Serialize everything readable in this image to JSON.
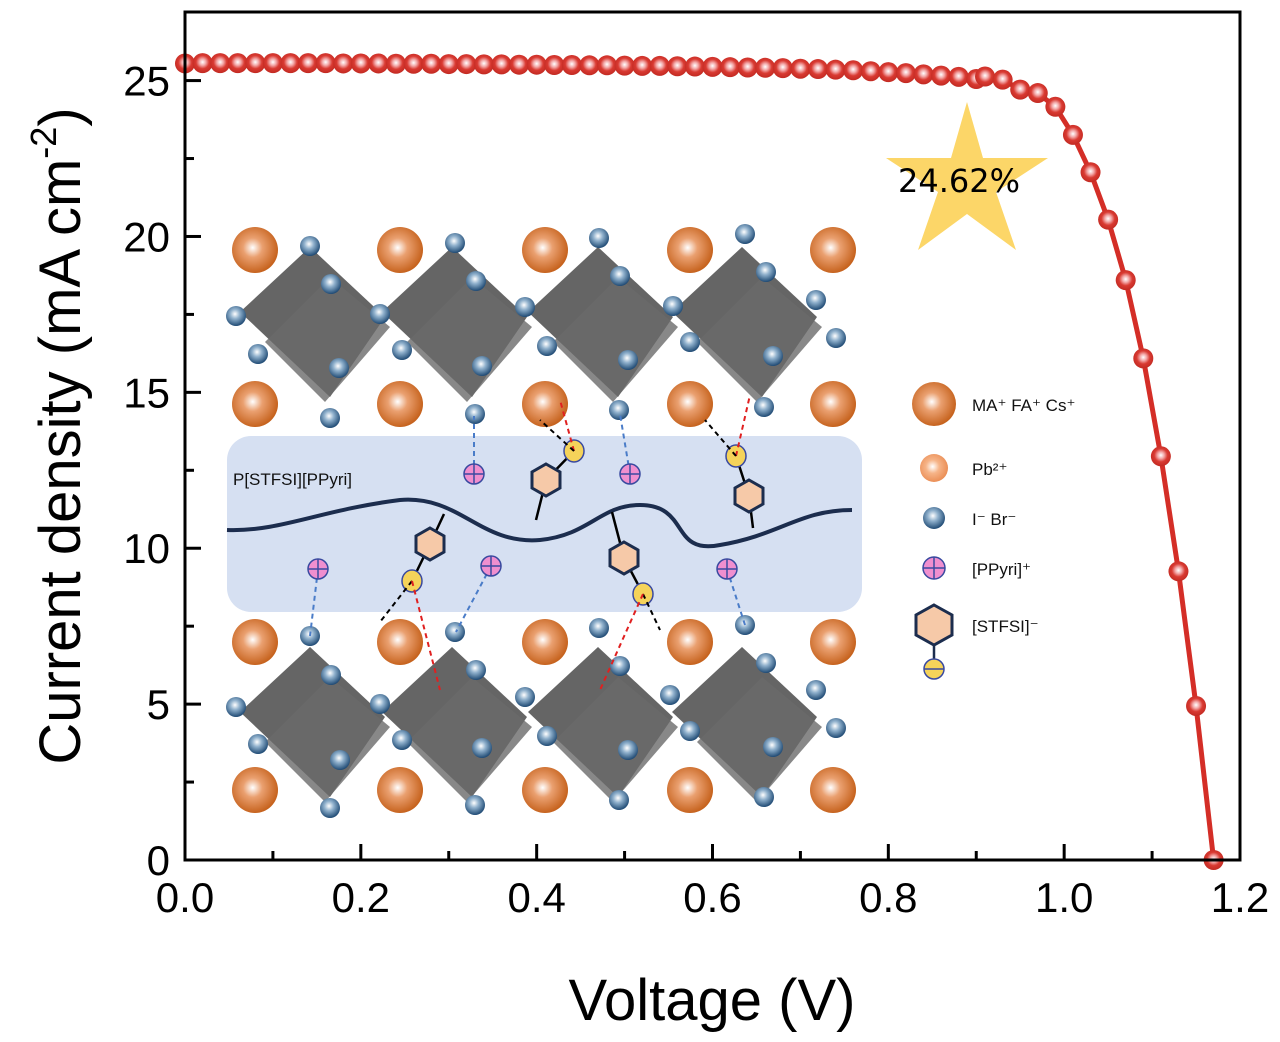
{
  "chart_data": {
    "type": "line",
    "title": "",
    "xlabel": "Voltage (V)",
    "ylabel_main": "Current density (mA cm",
    "ylabel_sup": "-2",
    "ylabel_close": ")",
    "xlim": [
      0.0,
      1.2
    ],
    "ylim": [
      0,
      27.2
    ],
    "xticks": [
      0.0,
      0.2,
      0.4,
      0.6,
      0.8,
      1.0,
      1.2
    ],
    "xtick_labels": [
      "0.0",
      "0.2",
      "0.4",
      "0.6",
      "0.8",
      "1.0",
      "1.2"
    ],
    "xminor_step": 0.1,
    "yticks": [
      0,
      5,
      10,
      15,
      20,
      25
    ],
    "ytick_labels": [
      "0",
      "5",
      "10",
      "15",
      "20",
      "25"
    ],
    "yminor_step": 2.5,
    "grid": false,
    "series": [
      {
        "name": "J-V curve",
        "color": "#d42e27",
        "x": [
          0.0,
          0.02,
          0.04,
          0.06,
          0.08,
          0.1,
          0.12,
          0.14,
          0.16,
          0.18,
          0.2,
          0.22,
          0.24,
          0.26,
          0.28,
          0.3,
          0.32,
          0.34,
          0.36,
          0.38,
          0.4,
          0.42,
          0.44,
          0.46,
          0.48,
          0.5,
          0.52,
          0.54,
          0.56,
          0.58,
          0.6,
          0.62,
          0.64,
          0.66,
          0.68,
          0.7,
          0.72,
          0.74,
          0.76,
          0.78,
          0.8,
          0.82,
          0.84,
          0.86,
          0.88,
          0.9,
          0.91,
          0.93,
          0.95,
          0.97,
          0.99,
          1.01,
          1.03,
          1.05,
          1.07,
          1.09,
          1.11,
          1.13,
          1.15,
          1.17
        ],
        "y": [
          25.55,
          25.56,
          25.56,
          25.56,
          25.56,
          25.56,
          25.56,
          25.56,
          25.56,
          25.55,
          25.55,
          25.55,
          25.54,
          25.54,
          25.54,
          25.53,
          25.53,
          25.52,
          25.52,
          25.51,
          25.51,
          25.5,
          25.5,
          25.49,
          25.49,
          25.48,
          25.47,
          25.47,
          25.46,
          25.45,
          25.44,
          25.43,
          25.42,
          25.41,
          25.4,
          25.38,
          25.37,
          25.35,
          25.33,
          25.3,
          25.27,
          25.24,
          25.2,
          25.16,
          25.12,
          25.05,
          25.13,
          25.03,
          24.71,
          24.6,
          24.16,
          23.26,
          22.06,
          20.54,
          18.6,
          16.09,
          12.95,
          9.26,
          4.94,
          0.0
        ]
      }
    ],
    "annotations": {
      "pce_label": "24.62%",
      "star_color": "#fcd668",
      "polymer_label": "P[STFSI][PPyri]",
      "legend": [
        {
          "icon": "large-orange-sphere",
          "label": "MA⁺ FA⁺ Cs⁺"
        },
        {
          "icon": "small-orange-sphere",
          "label": "Pb²⁺"
        },
        {
          "icon": "blue-sphere",
          "label": "I⁻ Br⁻"
        },
        {
          "icon": "pink-plus-circle",
          "label": "[PPyri]⁺"
        },
        {
          "icon": "hexagon-minus-circle",
          "label": "[STFSI]⁻"
        }
      ]
    },
    "colors": {
      "curve": "#d42e27",
      "a_site": "#c9621a",
      "pb": "#f0a070",
      "halide": "#2f5d86",
      "ppyri": "#f08fcf",
      "stfsi_hex": "#f6c9a8",
      "stfsi_anion": "#f5d35a",
      "polymer_band": "#d6e0f2",
      "polymer_chain": "#1c2d4e",
      "octahedron": "#555555"
    }
  }
}
